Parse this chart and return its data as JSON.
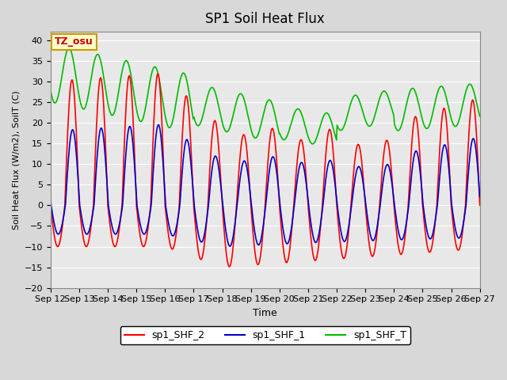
{
  "title": "SP1 Soil Heat Flux",
  "xlabel": "Time",
  "ylabel": "Soil Heat Flux (W/m2), SoilT (C)",
  "ylim": [
    -20,
    42
  ],
  "yticks": [
    -20,
    -15,
    -10,
    -5,
    0,
    5,
    10,
    15,
    20,
    25,
    30,
    35,
    40
  ],
  "fig_bg": "#d8d8d8",
  "ax_bg": "#e8e8e8",
  "watermark_text": "TZ_osu",
  "watermark_bg": "#ffffcc",
  "watermark_border": "#cc9900",
  "legend_labels": [
    "sp1_SHF_2",
    "sp1_SHF_1",
    "sp1_SHF_T"
  ],
  "legend_colors": [
    "#ff0000",
    "#0000cc",
    "#00bb00"
  ],
  "line_colors": {
    "sp1_SHF_2": "#ff0000",
    "sp1_SHF_1": "#0000cc",
    "sp1_SHF_T": "#00bb00"
  },
  "xtick_labels": [
    "Sep 12",
    "Sep 13",
    "Sep 14",
    "Sep 15",
    "Sep 16",
    "Sep 17",
    "Sep 18",
    "Sep 19",
    "Sep 20",
    "Sep 21",
    "Sep 22",
    "Sep 23",
    "Sep 24",
    "Sep 25",
    "Sep 26",
    "Sep 27"
  ],
  "num_days": 15
}
